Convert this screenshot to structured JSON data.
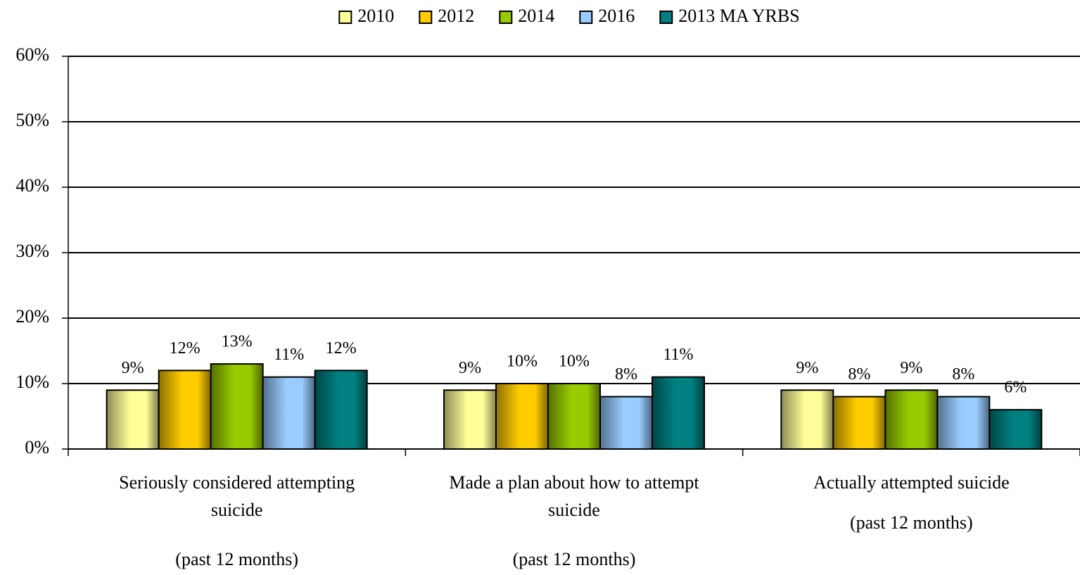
{
  "chart_data": {
    "type": "bar",
    "categories": [
      [
        "Seriously considered attempting",
        "suicide",
        "(past 12 months)"
      ],
      [
        "Made a plan about how to attempt",
        "suicide",
        "(past 12 months)"
      ],
      [
        "Actually attempted suicide",
        "(past 12 months)"
      ]
    ],
    "series": [
      {
        "name": "2010",
        "color": "#ffff99",
        "values": [
          9,
          9,
          9
        ],
        "value_labels": [
          "9%",
          "9%",
          "9%"
        ]
      },
      {
        "name": "2012",
        "color": "#ffcc00",
        "values": [
          12,
          10,
          8
        ],
        "value_labels": [
          "12%",
          "10%",
          "8%"
        ]
      },
      {
        "name": "2014",
        "color": "#99cc00",
        "values": [
          13,
          10,
          9
        ],
        "value_labels": [
          "13%",
          "10%",
          "9%"
        ]
      },
      {
        "name": "2016",
        "color": "#99ccff",
        "values": [
          11,
          8,
          8
        ],
        "value_labels": [
          "11%",
          "8%",
          "8%"
        ]
      },
      {
        "name": "2013 MA YRBS",
        "color": "#008080",
        "values": [
          12,
          11,
          6
        ],
        "value_labels": [
          "12%",
          "11%",
          "6%"
        ]
      }
    ],
    "ylim": [
      0,
      60
    ],
    "yticks": [
      {
        "value": 0,
        "label": "0%"
      },
      {
        "value": 10,
        "label": "10%"
      },
      {
        "value": 20,
        "label": "20%"
      },
      {
        "value": 30,
        "label": "30%"
      },
      {
        "value": 40,
        "label": "40%"
      },
      {
        "value": 50,
        "label": "50%"
      },
      {
        "value": 60,
        "label": "60%"
      }
    ],
    "grid": true,
    "legend": "top"
  }
}
